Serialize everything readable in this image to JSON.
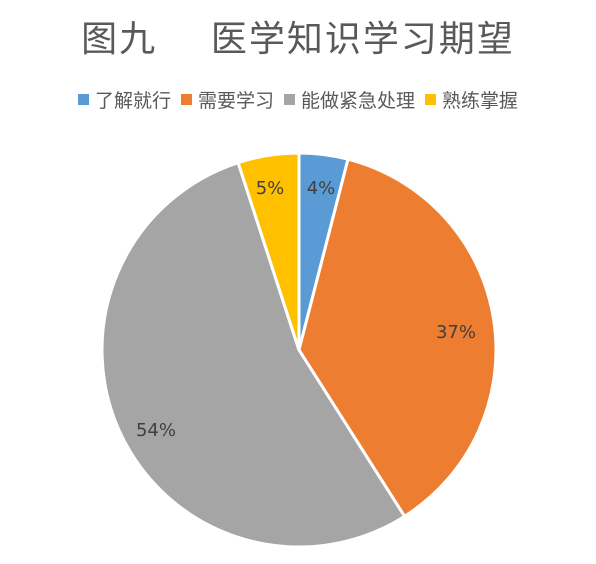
{
  "chart_data": {
    "type": "pie",
    "title": "图九    医学知识学习期望",
    "categories": [
      "了解就行",
      "需要学习",
      "能做紧急处理",
      "熟练掌握"
    ],
    "values": [
      4,
      37,
      54,
      5
    ],
    "labels": [
      "4%",
      "37%",
      "54%",
      "5%"
    ],
    "colors": [
      "#5B9BD5",
      "#ED7D31",
      "#A5A5A5",
      "#FFC000"
    ],
    "legend_position": "top"
  }
}
